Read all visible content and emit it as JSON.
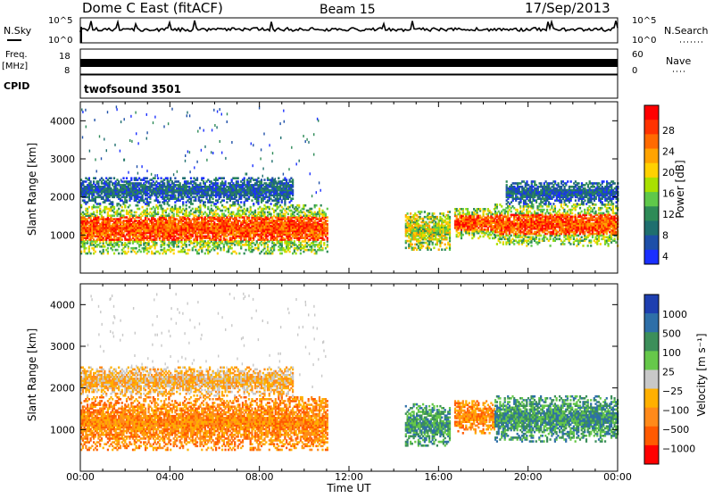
{
  "header": {
    "station": "Dome C East (fitACF)",
    "beam": "Beam 15",
    "date": "17/Sep/2013"
  },
  "panels": {
    "nsky": {
      "label": "N.Sky",
      "tick_top": "10^5",
      "tick_bottom": "10^0"
    },
    "nsearch": {
      "label": "N.Search",
      "tick_top": "10^5",
      "tick_bottom": "10^0"
    },
    "freq": {
      "label_line1": "Freq.",
      "label_line2": "[MHz]",
      "tick_top": "18",
      "tick_bottom": "8"
    },
    "nave": {
      "label": "Nave",
      "tick_top": "60",
      "tick_bottom": "0"
    },
    "cpid": {
      "label": "CPID",
      "program": "twofsound 3501"
    }
  },
  "chart_data": [
    {
      "type": "heatmap",
      "name": "power",
      "ylabel": "Slant Range [km]",
      "yticks": [
        "1000",
        "2000",
        "3000",
        "4000"
      ],
      "ylim": [
        0,
        4500
      ],
      "colorbar": {
        "title": "Power [dB]",
        "labels": [
          "28",
          "24",
          "20",
          "16",
          "12",
          "8",
          "4"
        ],
        "colors": [
          "#ff0000",
          "#ff3300",
          "#ff6a00",
          "#ffa300",
          "#ffd100",
          "#a9e000",
          "#5fc84a",
          "#2e8b57",
          "#1f6f6f",
          "#1e4fa8",
          "#1a2fff"
        ]
      },
      "bands": [
        {
          "t0": 0.0,
          "t1": 11.0,
          "r0": 500,
          "r1": 1800,
          "level": "high"
        },
        {
          "t0": 0.0,
          "t1": 9.5,
          "r0": 1800,
          "r1": 2500,
          "level": "low"
        },
        {
          "t0": 14.5,
          "t1": 16.5,
          "r0": 600,
          "r1": 1600,
          "level": "mid"
        },
        {
          "t0": 16.7,
          "t1": 18.5,
          "r0": 900,
          "r1": 1700,
          "level": "high"
        },
        {
          "t0": 18.5,
          "t1": 24.0,
          "r0": 700,
          "r1": 1800,
          "level": "high"
        },
        {
          "t0": 19.0,
          "t1": 24.0,
          "r0": 1800,
          "r1": 2400,
          "level": "low"
        }
      ]
    },
    {
      "type": "heatmap",
      "name": "velocity",
      "ylabel": "Slant Range [km]",
      "yticks": [
        "1000",
        "2000",
        "3000",
        "4000"
      ],
      "ylim": [
        0,
        4500
      ],
      "xticks": [
        "00:00",
        "04:00",
        "08:00",
        "12:00",
        "16:00",
        "20:00",
        "00:00"
      ],
      "xlabel": "Time UT",
      "colorbar": {
        "title": "Velocity [m s⁻¹]",
        "labels": [
          "1000",
          "500",
          "100",
          "25",
          "−25",
          "−100",
          "−500",
          "−1000"
        ],
        "colors": [
          "#1e3fb0",
          "#2e6fa8",
          "#3c8f5a",
          "#66c84a",
          "#c8c8c8",
          "#ffb000",
          "#ff8a1a",
          "#ff5a00",
          "#ff0000"
        ]
      },
      "bands": [
        {
          "t0": 0.0,
          "t1": 11.0,
          "r0": 500,
          "r1": 1800,
          "level": "neg"
        },
        {
          "t0": 0.0,
          "t1": 9.5,
          "r0": 1800,
          "r1": 2500,
          "level": "mixed"
        },
        {
          "t0": 14.5,
          "t1": 16.5,
          "r0": 600,
          "r1": 1600,
          "level": "pos"
        },
        {
          "t0": 16.7,
          "t1": 18.5,
          "r0": 900,
          "r1": 1700,
          "level": "neg"
        },
        {
          "t0": 18.5,
          "t1": 24.0,
          "r0": 700,
          "r1": 1800,
          "level": "pos"
        }
      ]
    }
  ]
}
